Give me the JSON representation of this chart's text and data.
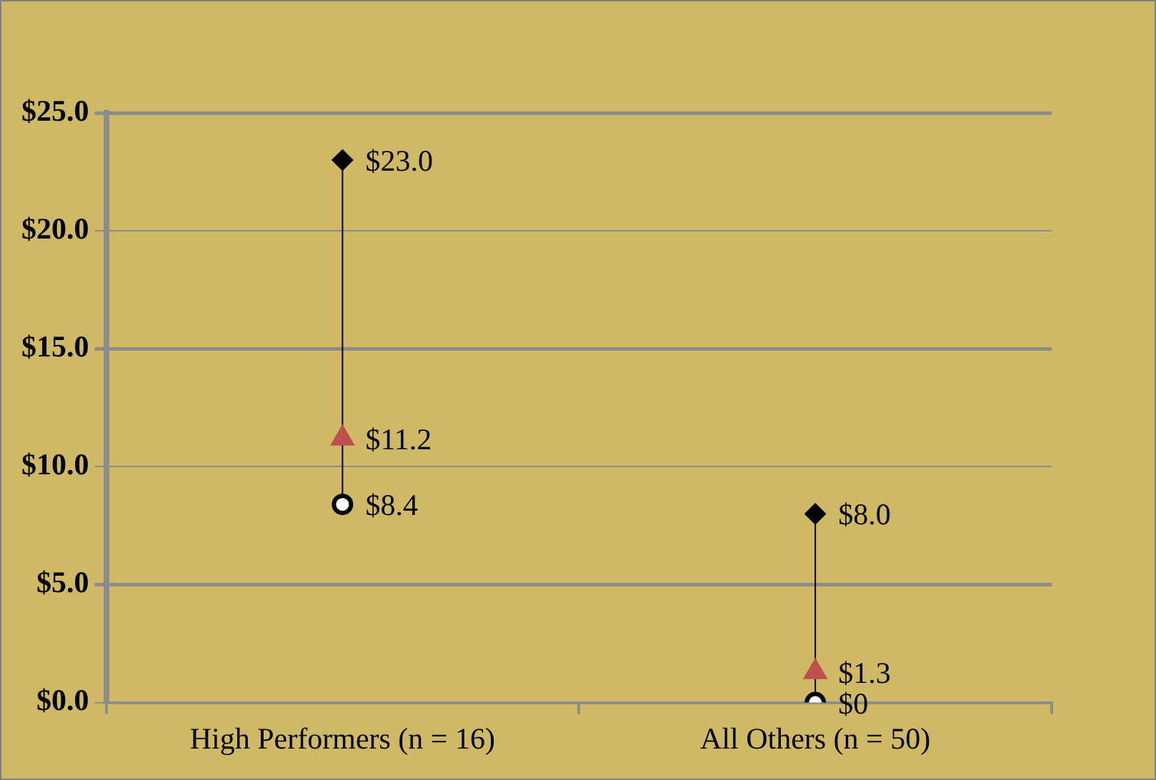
{
  "chart_data": {
    "type": "scatter",
    "categories": [
      "High Performers (n = 16)",
      "All Others (n = 50)"
    ],
    "series": [
      {
        "type": "line",
        "color": "#000000",
        "marker": "none",
        "x": [
          "High Performers (n = 16)",
          "High Performers (n = 16)"
        ],
        "values": [
          8.4,
          23.0
        ]
      },
      {
        "type": "line",
        "color": "#000000",
        "marker": "none",
        "x": [
          "All Others (n = 50)",
          "All Others (n = 50)"
        ],
        "values": [
          0,
          8.0
        ]
      },
      {
        "color": "#000000",
        "marker": "diamond",
        "values": [
          23.0,
          8.0
        ],
        "value_labels": [
          "$23.0",
          "$8.0"
        ]
      },
      {
        "color": "#c0504d",
        "marker": "triangle",
        "values": [
          11.2,
          1.3
        ],
        "value_labels": [
          "$11.2",
          "$1.3"
        ]
      },
      {
        "color": "#000000",
        "marker": "circle",
        "values": [
          8.4,
          0
        ],
        "value_labels": [
          "$8.4",
          "$0"
        ]
      }
    ],
    "ylim": [
      0,
      25
    ],
    "yticks": [
      {
        "value": 0,
        "label": "$0.0"
      },
      {
        "value": 5,
        "label": "$5.0"
      },
      {
        "value": 10,
        "label": "$10.0"
      },
      {
        "value": 15,
        "label": "$15.0"
      },
      {
        "value": 20,
        "label": "$20.0"
      },
      {
        "value": 25,
        "label": "$25.0"
      }
    ],
    "grid": "y",
    "legend": false
  }
}
